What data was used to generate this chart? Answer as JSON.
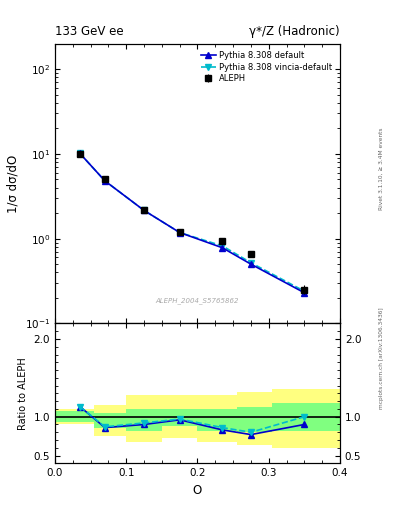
{
  "title_left": "133 GeV ee",
  "title_right": "γ*/Z (Hadronic)",
  "right_label_top": "Rivet 3.1.10, ≥ 3.4M events",
  "right_label_bot": "mcplots.cern.ch [arXiv:1306.3436]",
  "watermark": "ALEPH_2004_S5765862",
  "aleph_x": [
    0.035,
    0.07,
    0.125,
    0.175,
    0.235,
    0.275,
    0.35
  ],
  "aleph_y": [
    10.0,
    5.0,
    2.2,
    1.2,
    0.95,
    0.65,
    0.25
  ],
  "aleph_yerr_lo": [
    0.4,
    0.25,
    0.12,
    0.08,
    0.06,
    0.05,
    0.03
  ],
  "aleph_yerr_hi": [
    0.4,
    0.25,
    0.12,
    0.08,
    0.06,
    0.05,
    0.03
  ],
  "pythia_def_x": [
    0.035,
    0.07,
    0.125,
    0.175,
    0.235,
    0.275,
    0.35
  ],
  "pythia_def_y": [
    10.1,
    4.8,
    2.15,
    1.18,
    0.78,
    0.5,
    0.23
  ],
  "pythia_vin_x": [
    0.035,
    0.07,
    0.125,
    0.175,
    0.235,
    0.275,
    0.35
  ],
  "pythia_vin_y": [
    10.1,
    4.8,
    2.15,
    1.18,
    0.82,
    0.52,
    0.24
  ],
  "ratio_def_y": [
    1.13,
    0.86,
    0.9,
    0.96,
    0.83,
    0.77,
    0.9
  ],
  "ratio_vin_y": [
    1.13,
    0.87,
    0.92,
    0.97,
    0.86,
    0.8,
    1.0
  ],
  "band_x_edges": [
    0.0,
    0.055,
    0.1,
    0.15,
    0.2,
    0.255,
    0.305,
    0.4
  ],
  "band_yellow_lo": [
    0.9,
    0.75,
    0.68,
    0.72,
    0.68,
    0.63,
    0.6
  ],
  "band_yellow_hi": [
    1.1,
    1.15,
    1.28,
    1.28,
    1.28,
    1.32,
    1.35
  ],
  "band_green_lo": [
    0.93,
    0.85,
    0.82,
    0.88,
    0.82,
    0.8,
    0.82
  ],
  "band_green_hi": [
    1.07,
    1.05,
    1.1,
    1.1,
    1.1,
    1.12,
    1.18
  ],
  "ylabel_main": "1/σ dσ/dO",
  "ylabel_ratio": "Ratio to ALEPH",
  "xlabel": "O",
  "ylim_main": [
    0.1,
    200
  ],
  "ylim_ratio": [
    0.4,
    2.2
  ],
  "yticks_ratio": [
    0.5,
    1.0,
    2.0
  ],
  "xlim": [
    0.0,
    0.4
  ],
  "color_aleph": "#000000",
  "color_pythia_def": "#0000cc",
  "color_pythia_vin": "#00bbcc",
  "color_yellow": "#ffff80",
  "color_green": "#80ff80"
}
